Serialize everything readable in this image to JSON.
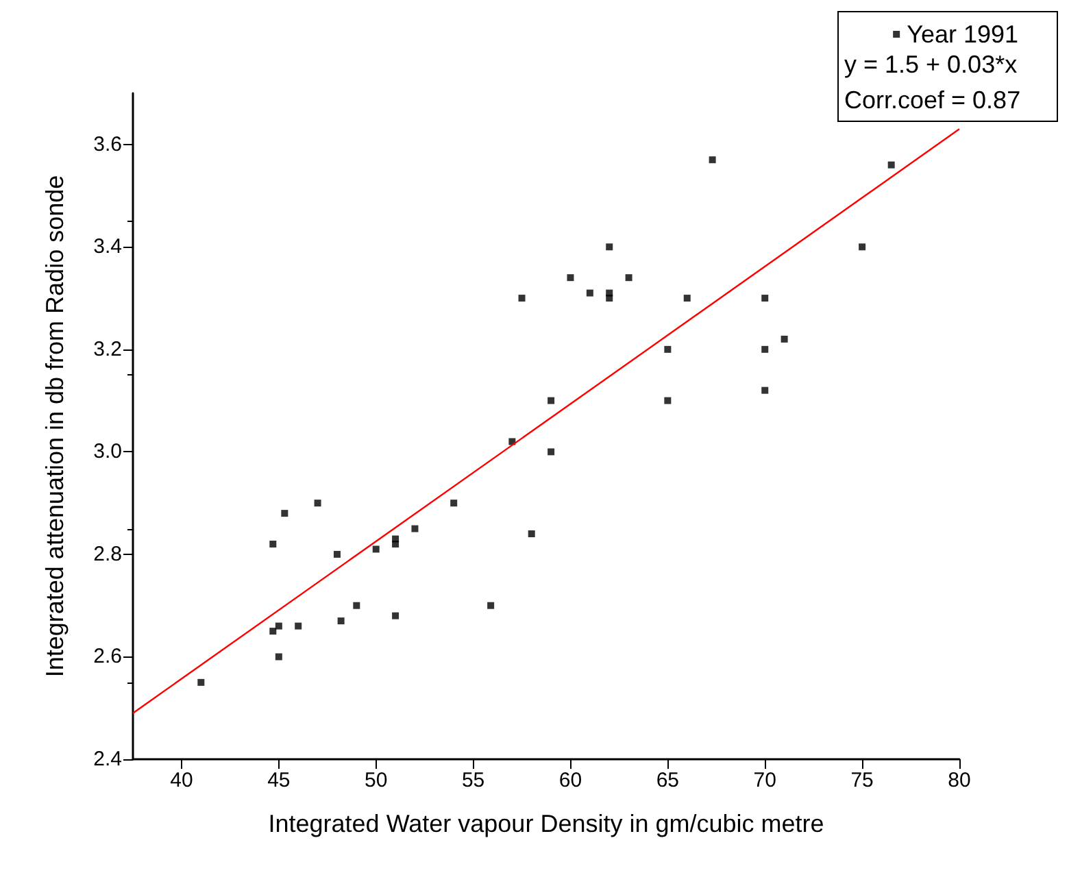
{
  "chart_data": {
    "type": "scatter",
    "xlabel": "Integrated Water vapour Density in gm/cubic metre",
    "ylabel": "Integrated attenuation in db from Radio sonde",
    "xlim": [
      37.5,
      80
    ],
    "xticks": [
      40,
      45,
      50,
      55,
      60,
      65,
      70,
      75,
      80
    ],
    "ylim": [
      2.4,
      3.7
    ],
    "yticks": [
      2.4,
      2.6,
      2.8,
      {
        "value": 3,
        "label": "3.0"
      },
      3.2,
      3.4,
      3.6
    ],
    "legend": "top right",
    "marker": "square",
    "grid": false,
    "annotations": [
      "y = 1.5 + 0.03*x",
      "Corr.coef = 0.87"
    ],
    "series": [
      {
        "name": "Year 1991",
        "color": "#000000",
        "x": [
          41,
          44.7,
          44.7,
          45,
          45,
          45.3,
          46,
          47,
          48,
          48.2,
          49,
          50,
          51,
          51,
          51,
          52,
          54,
          55.9,
          57,
          57.5,
          58,
          59,
          59,
          60,
          61,
          62,
          62,
          62,
          63,
          65,
          65,
          66,
          67.3,
          70,
          70,
          70,
          71,
          75,
          76.5
        ],
        "values": [
          2.55,
          2.65,
          2.82,
          2.66,
          2.6,
          2.88,
          2.66,
          2.9,
          2.8,
          2.67,
          2.7,
          2.81,
          2.82,
          2.83,
          2.68,
          2.85,
          2.9,
          2.7,
          3.02,
          3.3,
          2.84,
          3.1,
          3.0,
          3.34,
          3.31,
          3.4,
          3.3,
          3.31,
          3.34,
          3.2,
          3.1,
          3.3,
          3.57,
          3.3,
          3.2,
          3.12,
          3.22,
          3.4,
          3.56
        ]
      },
      {
        "type": "line",
        "marker": "none",
        "color": "#ff0000",
        "x": [
          37.5,
          80
        ],
        "values": [
          2.49,
          3.63
        ]
      }
    ]
  }
}
